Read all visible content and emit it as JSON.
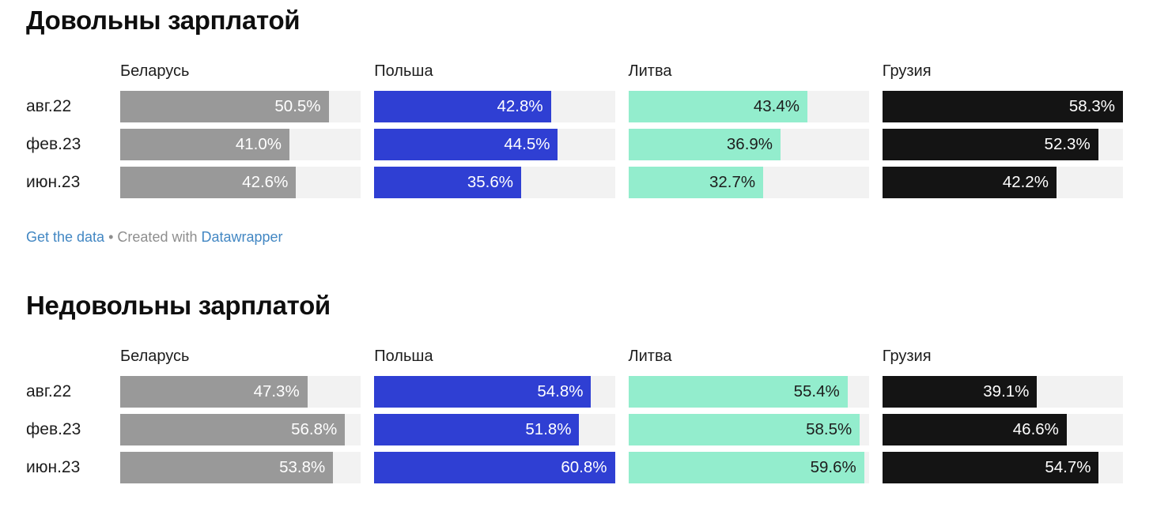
{
  "colors": {
    "track_background": "#f2f2f2",
    "title_text": "#0e0e0e",
    "body_text": "#1d1d1d",
    "link_blue": "#4287c3",
    "footer_gray": "#8e8e8e"
  },
  "footer": {
    "get_the_data": "Get the data",
    "separator": "•",
    "created_with": "Created with",
    "datawrapper": "Datawrapper"
  },
  "chart_data": [
    {
      "type": "bar",
      "title": "Довольны зарплатой",
      "categories": [
        "авг.22",
        "фев.23",
        "июн.23"
      ],
      "series": [
        {
          "name": "Беларусь",
          "color": "#999999",
          "label_color": "#ffffff",
          "values": [
            50.5,
            41.0,
            42.6
          ]
        },
        {
          "name": "Польша",
          "color": "#2f3fd3",
          "label_color": "#ffffff",
          "values": [
            42.8,
            44.5,
            35.6
          ]
        },
        {
          "name": "Литва",
          "color": "#93edcd",
          "label_color": "#1d1d1d",
          "values": [
            43.4,
            36.9,
            32.7
          ]
        },
        {
          "name": "Грузия",
          "color": "#141414",
          "label_color": "#ffffff",
          "values": [
            58.3,
            52.3,
            42.2
          ]
        }
      ],
      "value_suffix": "%",
      "value_decimals": 1,
      "xlim": [
        0,
        58.3
      ],
      "legend_position": "none",
      "grid": false
    },
    {
      "type": "bar",
      "title": "Недовольны зарплатой",
      "categories": [
        "авг.22",
        "фев.23",
        "июн.23"
      ],
      "series": [
        {
          "name": "Беларусь",
          "color": "#999999",
          "label_color": "#ffffff",
          "values": [
            47.3,
            56.8,
            53.8
          ]
        },
        {
          "name": "Польша",
          "color": "#2f3fd3",
          "label_color": "#ffffff",
          "values": [
            54.8,
            51.8,
            60.8
          ]
        },
        {
          "name": "Литва",
          "color": "#93edcd",
          "label_color": "#1d1d1d",
          "values": [
            55.4,
            58.5,
            59.6
          ]
        },
        {
          "name": "Грузия",
          "color": "#141414",
          "label_color": "#ffffff",
          "values": [
            39.1,
            46.6,
            54.7
          ]
        }
      ],
      "value_suffix": "%",
      "value_decimals": 1,
      "xlim": [
        0,
        60.8
      ],
      "legend_position": "none",
      "grid": false
    }
  ]
}
